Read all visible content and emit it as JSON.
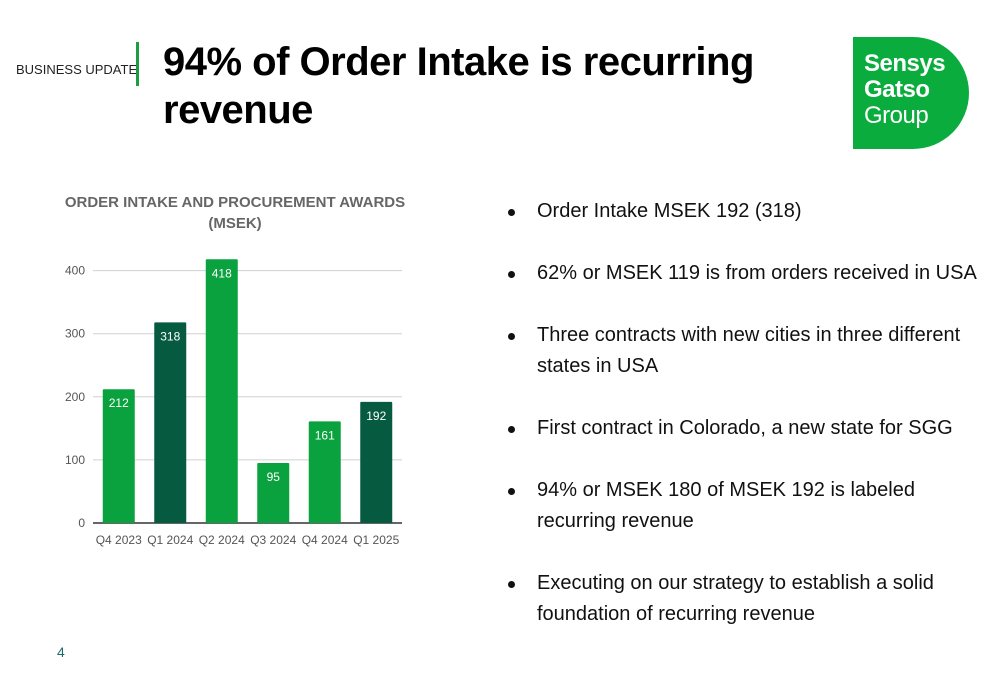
{
  "header": {
    "section": "BUSINESS UPDATE",
    "title": "94% of Order Intake is recurring revenue"
  },
  "logo": {
    "line1": "Sensys",
    "line2": "Gatso",
    "line3": "Group",
    "color": "#0aad3d"
  },
  "chart_data": {
    "type": "bar",
    "title": "ORDER INTAKE AND PROCUREMENT AWARDS (MSEK)",
    "title_line1": "ORDER INTAKE AND PROCUREMENT AWARDS",
    "title_line2": "(MSEK)",
    "categories": [
      "Q4 2023",
      "Q1 2024",
      "Q2 2024",
      "Q3 2024",
      "Q4 2024",
      "Q1 2025"
    ],
    "values": [
      212,
      318,
      418,
      95,
      161,
      192
    ],
    "bar_colors": [
      "#0aa23e",
      "#065a40",
      "#0aa23e",
      "#0aa23e",
      "#0aa23e",
      "#065a40"
    ],
    "data_labels": [
      "212",
      "318",
      "418",
      "95",
      "161",
      "192"
    ],
    "yticks": [
      "0",
      "100",
      "200",
      "300",
      "400"
    ],
    "ylim": [
      0,
      420
    ],
    "grid": true,
    "xlabel": "",
    "ylabel": ""
  },
  "bullets": [
    "Order Intake MSEK 192  (318)",
    "62% or MSEK 119 is from orders received in USA",
    "Three contracts with new cities in three different states in USA",
    "First contract in Colorado,  a new state for SGG",
    "94% or MSEK 180 of MSEK 192 is labeled recurring revenue",
    "Executing on our strategy to establish a solid foundation of recurring revenue"
  ],
  "page_number": "4"
}
